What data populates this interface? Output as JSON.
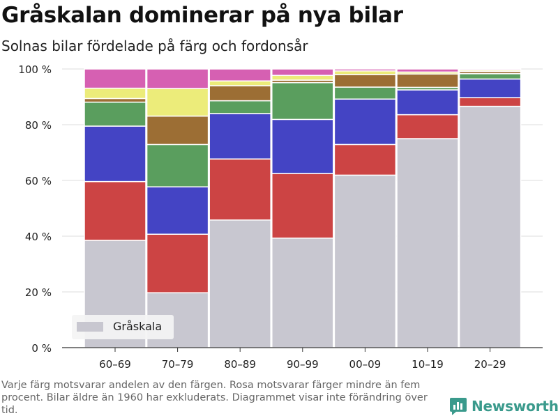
{
  "header": {
    "title": "Gråskalan dominerar på nya bilar",
    "subtitle": "Solnas bilar fördelade på färg och fordonsår"
  },
  "footer": {
    "note": "Varje färg motsvarar andelen av den färgen. Rosa motsvarar färger mindre än fem procent. Bilar äldre än 1960 har exkluderats. Diagrammet visar inte förändring över tid.",
    "brand": "Newsworthy"
  },
  "chart_data": {
    "type": "bar",
    "stacked": true,
    "categories": [
      "60–69",
      "70–79",
      "80–89",
      "90–99",
      "00–09",
      "10–19",
      "20–29"
    ],
    "y_ticks": [
      "0 %",
      "20 %",
      "40 %",
      "60 %",
      "80 %",
      "100 %"
    ],
    "ylim": [
      0,
      100
    ],
    "grid": true,
    "legend": {
      "position": "bottom-left",
      "entries": [
        "Gråskala"
      ]
    },
    "series": [
      {
        "name": "Gråskala",
        "color": "#c8c7d0",
        "values": [
          38.5,
          19.7,
          45.8,
          39.3,
          61.9,
          75.0,
          86.6
        ]
      },
      {
        "color": "#cc4444",
        "values": [
          21.1,
          21.0,
          21.9,
          23.2,
          11.0,
          8.6,
          3.1
        ]
      },
      {
        "color": "#4444c4",
        "values": [
          19.9,
          17.0,
          16.3,
          19.4,
          16.3,
          8.9,
          6.7
        ]
      },
      {
        "color": "#5a9e5e",
        "values": [
          8.6,
          15.2,
          4.6,
          13.2,
          4.3,
          0.9,
          1.9
        ]
      },
      {
        "color": "#9c6e34",
        "values": [
          1.3,
          10.2,
          5.4,
          0.9,
          4.5,
          4.8,
          0.8
        ]
      },
      {
        "color": "#ecec7a",
        "values": [
          3.7,
          9.9,
          1.7,
          1.7,
          1.3,
          0.7,
          0.5
        ]
      },
      {
        "color": "#d660b2",
        "values": [
          6.9,
          7.0,
          4.3,
          2.3,
          0.7,
          1.1,
          0.4
        ]
      }
    ]
  }
}
